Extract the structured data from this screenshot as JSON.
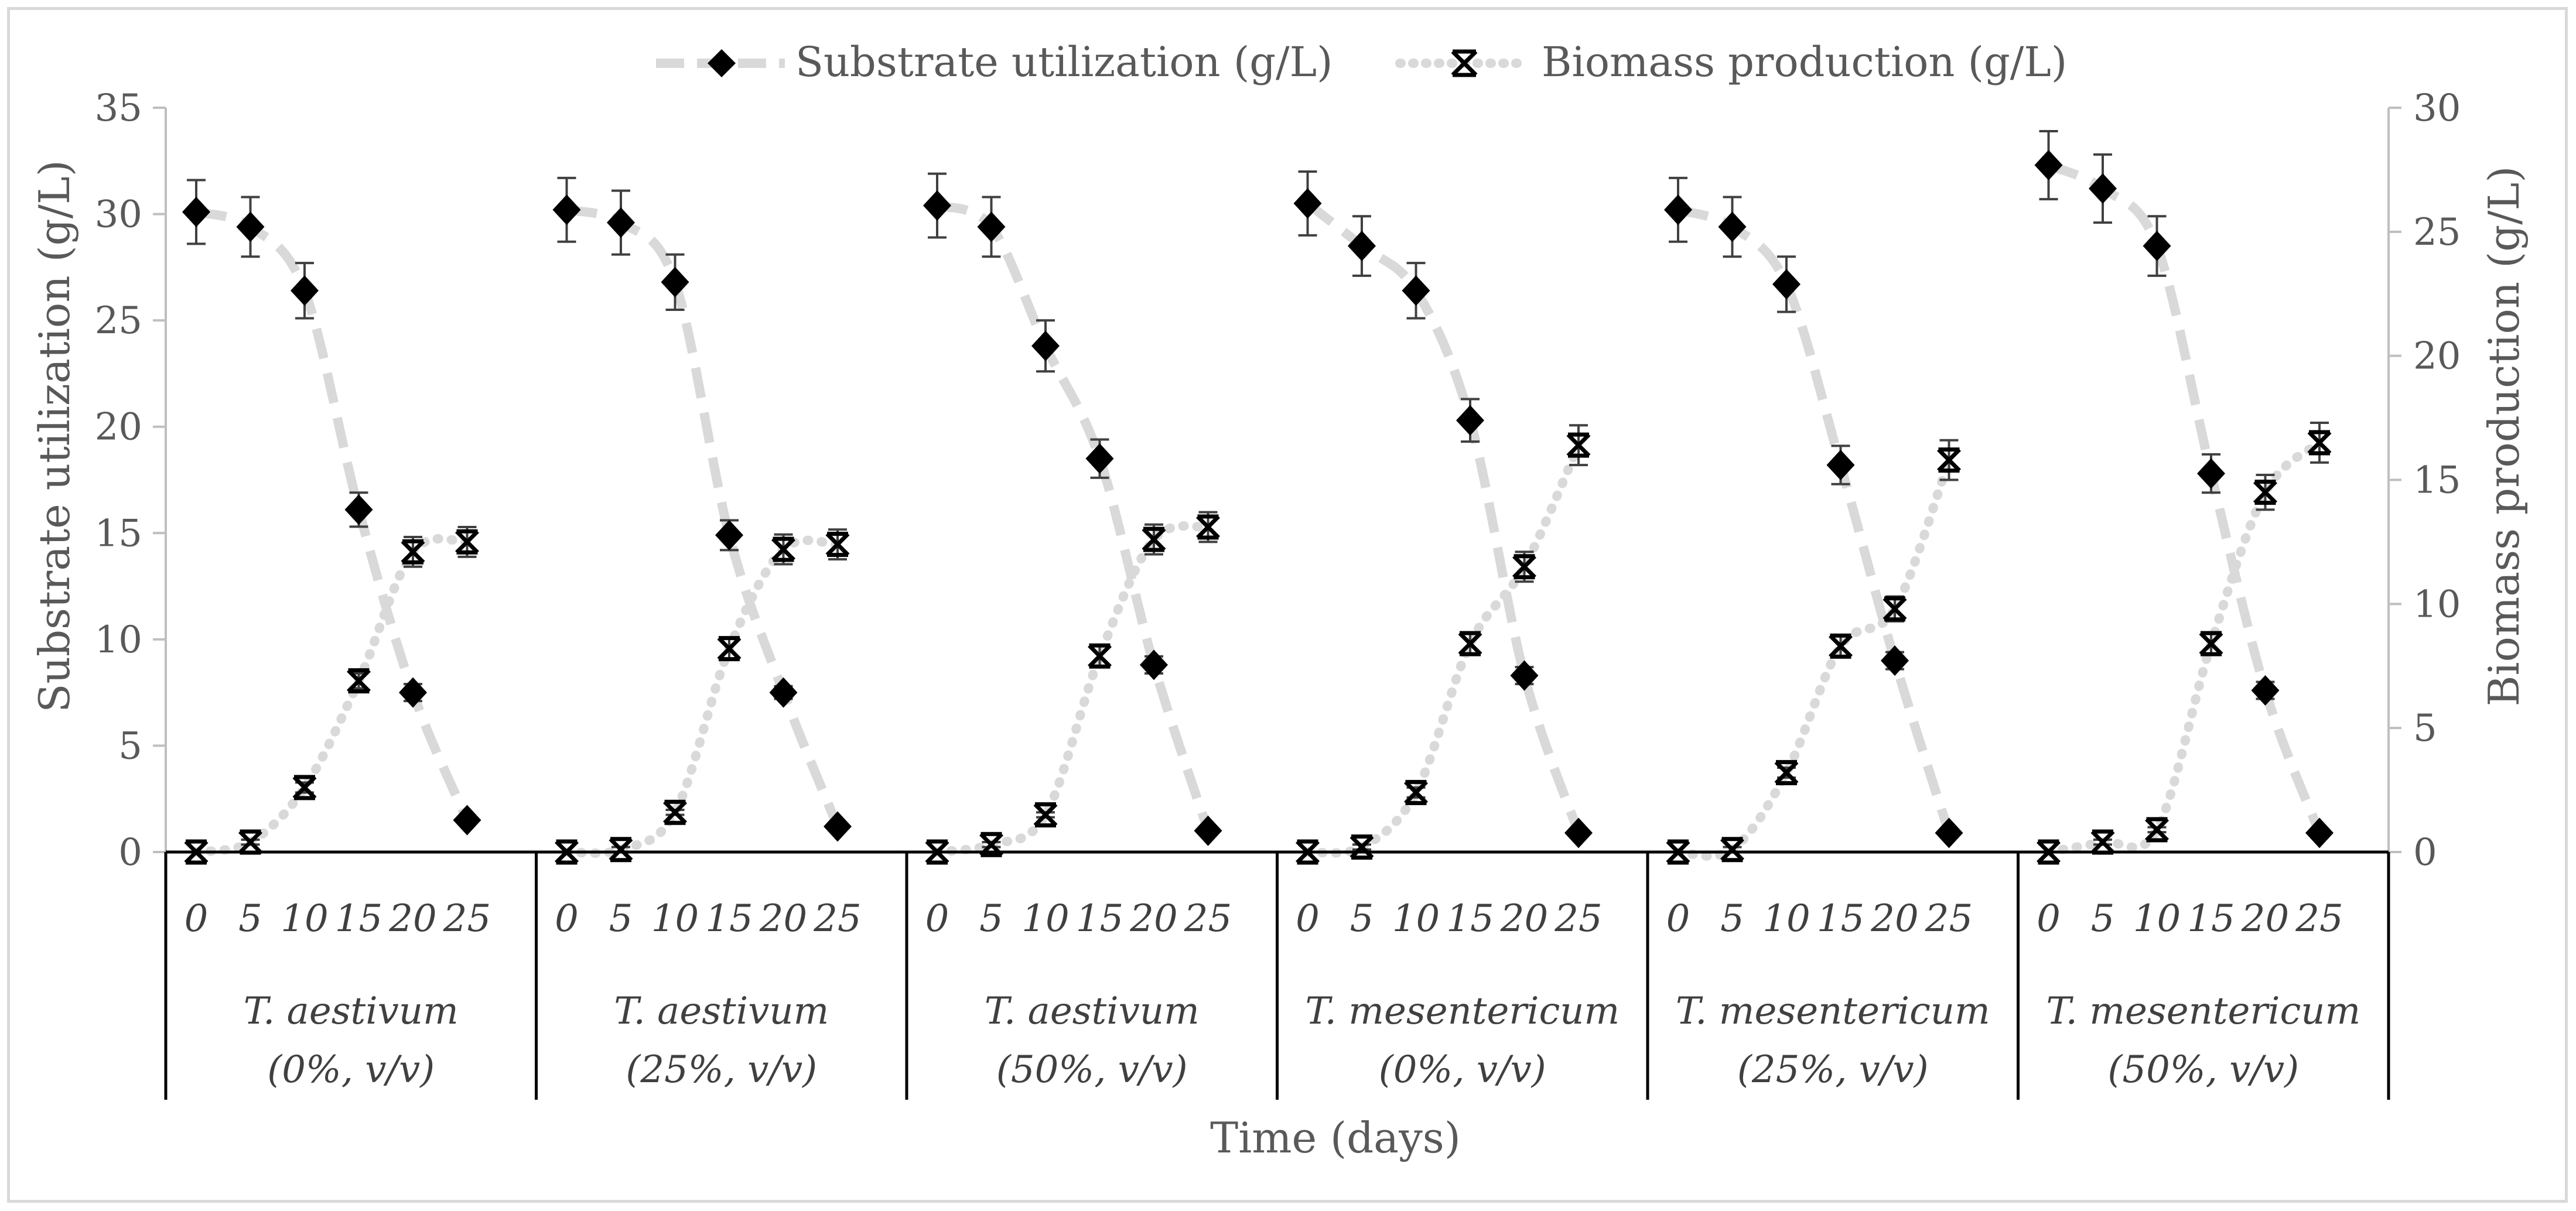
{
  "chart_data": {
    "type": "line",
    "title": "",
    "xlabel": "Time (days)",
    "ylabel": "Substrate utilization (g/L)",
    "y2label": "Biomass production (g/L)",
    "ylim": [
      0,
      35
    ],
    "y2lim": [
      0,
      30
    ],
    "yticks": [
      "0",
      "5",
      "10",
      "15",
      "20",
      "25",
      "30",
      "35"
    ],
    "y2ticks": [
      "0",
      "5",
      "10",
      "15",
      "20",
      "25",
      "30"
    ],
    "legend_position": "top-center",
    "x_values": [
      "0",
      "5",
      "10",
      "15",
      "20",
      "25"
    ],
    "groups": [
      {
        "name": "T. aestivum",
        "subtitle": "(0%, v/v)"
      },
      {
        "name": "T. aestivum",
        "subtitle": "(25%, v/v)"
      },
      {
        "name": "T. aestivum",
        "subtitle": "(50%, v/v)"
      },
      {
        "name": "T. mesentericum",
        "subtitle": "(0%, v/v)"
      },
      {
        "name": "T. mesentericum",
        "subtitle": "(25%, v/v)"
      },
      {
        "name": "T. mesentericum",
        "subtitle": "(50%, v/v)"
      }
    ],
    "series": [
      {
        "name": "Substrate utilization (g/L)",
        "axis": "left",
        "marker": "diamond",
        "line_style": "dashed",
        "color": "#000000",
        "line_color": "#d9d9d9",
        "values": [
          [
            30.1,
            29.4,
            26.4,
            16.1,
            7.5,
            1.5
          ],
          [
            30.2,
            29.6,
            26.8,
            14.9,
            7.5,
            1.2
          ],
          [
            30.4,
            29.4,
            23.8,
            18.5,
            8.8,
            1.0
          ],
          [
            30.5,
            28.5,
            26.4,
            20.3,
            8.3,
            0.9
          ],
          [
            30.2,
            29.4,
            26.7,
            18.2,
            9.0,
            0.9
          ],
          [
            32.3,
            31.2,
            28.5,
            17.8,
            7.6,
            0.9
          ]
        ],
        "errors": [
          [
            1.5,
            1.4,
            1.3,
            0.8,
            0.4,
            0.1
          ],
          [
            1.5,
            1.5,
            1.3,
            0.7,
            0.3,
            0.1
          ],
          [
            1.5,
            1.4,
            1.2,
            0.9,
            0.4,
            0.1
          ],
          [
            1.5,
            1.4,
            1.3,
            1.0,
            0.4,
            0.1
          ],
          [
            1.5,
            1.4,
            1.3,
            0.9,
            0.4,
            0.1
          ],
          [
            1.6,
            1.6,
            1.4,
            0.9,
            0.4,
            0.1
          ]
        ]
      },
      {
        "name": "Biomass production (g/L)",
        "axis": "right",
        "marker": "x-star",
        "line_style": "dotted",
        "color": "#000000",
        "line_color": "#d9d9d9",
        "values": [
          [
            0.0,
            0.4,
            2.6,
            6.9,
            12.1,
            12.5
          ],
          [
            0.0,
            0.1,
            1.6,
            8.2,
            12.2,
            12.4
          ],
          [
            0.0,
            0.3,
            1.5,
            7.9,
            12.6,
            13.1
          ],
          [
            0.0,
            0.2,
            2.4,
            8.4,
            11.5,
            16.4
          ],
          [
            0.0,
            0.1,
            3.2,
            8.3,
            9.8,
            15.8
          ],
          [
            0.0,
            0.4,
            0.9,
            8.4,
            14.5,
            16.5
          ]
        ],
        "errors": [
          [
            0.0,
            0.1,
            0.2,
            0.3,
            0.6,
            0.6
          ],
          [
            0.0,
            0.1,
            0.1,
            0.4,
            0.6,
            0.6
          ],
          [
            0.0,
            0.1,
            0.1,
            0.4,
            0.6,
            0.6
          ],
          [
            0.0,
            0.1,
            0.2,
            0.4,
            0.6,
            0.8
          ],
          [
            0.0,
            0.1,
            0.2,
            0.4,
            0.5,
            0.8
          ],
          [
            0.0,
            0.1,
            0.1,
            0.4,
            0.7,
            0.8
          ]
        ]
      }
    ]
  }
}
